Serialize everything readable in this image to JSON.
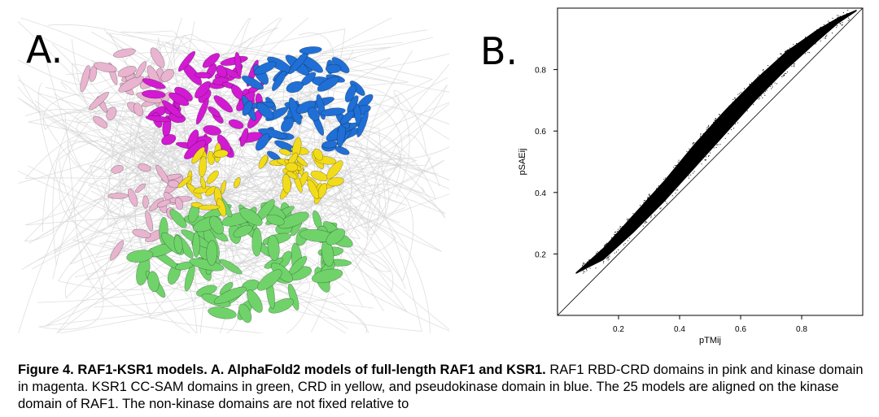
{
  "panel_a": {
    "letter": "A.",
    "image_description_colors": {
      "raf1_rbd_crd": "#e9b4cf",
      "raf1_kinase": "#d21ad2",
      "ksr1_cc_sam": "#6fd36a",
      "ksr1_crd": "#f2dc1a",
      "ksr1_pseudokinase": "#1f6fd6",
      "disordered_loops": "#d4d4d4"
    }
  },
  "panel_b": {
    "letter": "B."
  },
  "chart_data": {
    "type": "scatter",
    "title": "",
    "xlabel": "pTMij",
    "ylabel": "pSAEij",
    "xlim": [
      0.0,
      1.0
    ],
    "ylim": [
      0.0,
      1.0
    ],
    "xticks": [
      0.2,
      0.4,
      0.6,
      0.8
    ],
    "yticks": [
      0.2,
      0.4,
      0.6,
      0.8
    ],
    "grid": false,
    "reference_line": {
      "from": [
        0.0,
        0.0
      ],
      "to": [
        1.0,
        1.0
      ]
    },
    "point_color": "#000000",
    "band": {
      "upper": [
        [
          0.06,
          0.14
        ],
        [
          0.15,
          0.22
        ],
        [
          0.25,
          0.33
        ],
        [
          0.35,
          0.44
        ],
        [
          0.45,
          0.56
        ],
        [
          0.55,
          0.67
        ],
        [
          0.65,
          0.77
        ],
        [
          0.75,
          0.86
        ],
        [
          0.85,
          0.93
        ],
        [
          0.92,
          0.97
        ],
        [
          0.98,
          0.995
        ]
      ],
      "lower": [
        [
          0.06,
          0.135
        ],
        [
          0.15,
          0.18
        ],
        [
          0.25,
          0.27
        ],
        [
          0.35,
          0.37
        ],
        [
          0.45,
          0.48
        ],
        [
          0.55,
          0.59
        ],
        [
          0.65,
          0.7
        ],
        [
          0.75,
          0.8
        ],
        [
          0.85,
          0.89
        ],
        [
          0.92,
          0.95
        ],
        [
          0.98,
          0.99
        ]
      ]
    }
  },
  "caption": {
    "bold_part": "Figure 4. RAF1-KSR1 models. A. AlphaFold2 models of full-length RAF1 and KSR1.",
    "text": " RAF1 RBD-CRD domains in pink and kinase domain in magenta. KSR1 CC-SAM domains in green, CRD in yellow, and pseudokinase domain in blue. The 25 models are aligned on the kinase domain of RAF1. The non-kinase domains are not fixed relative to"
  }
}
